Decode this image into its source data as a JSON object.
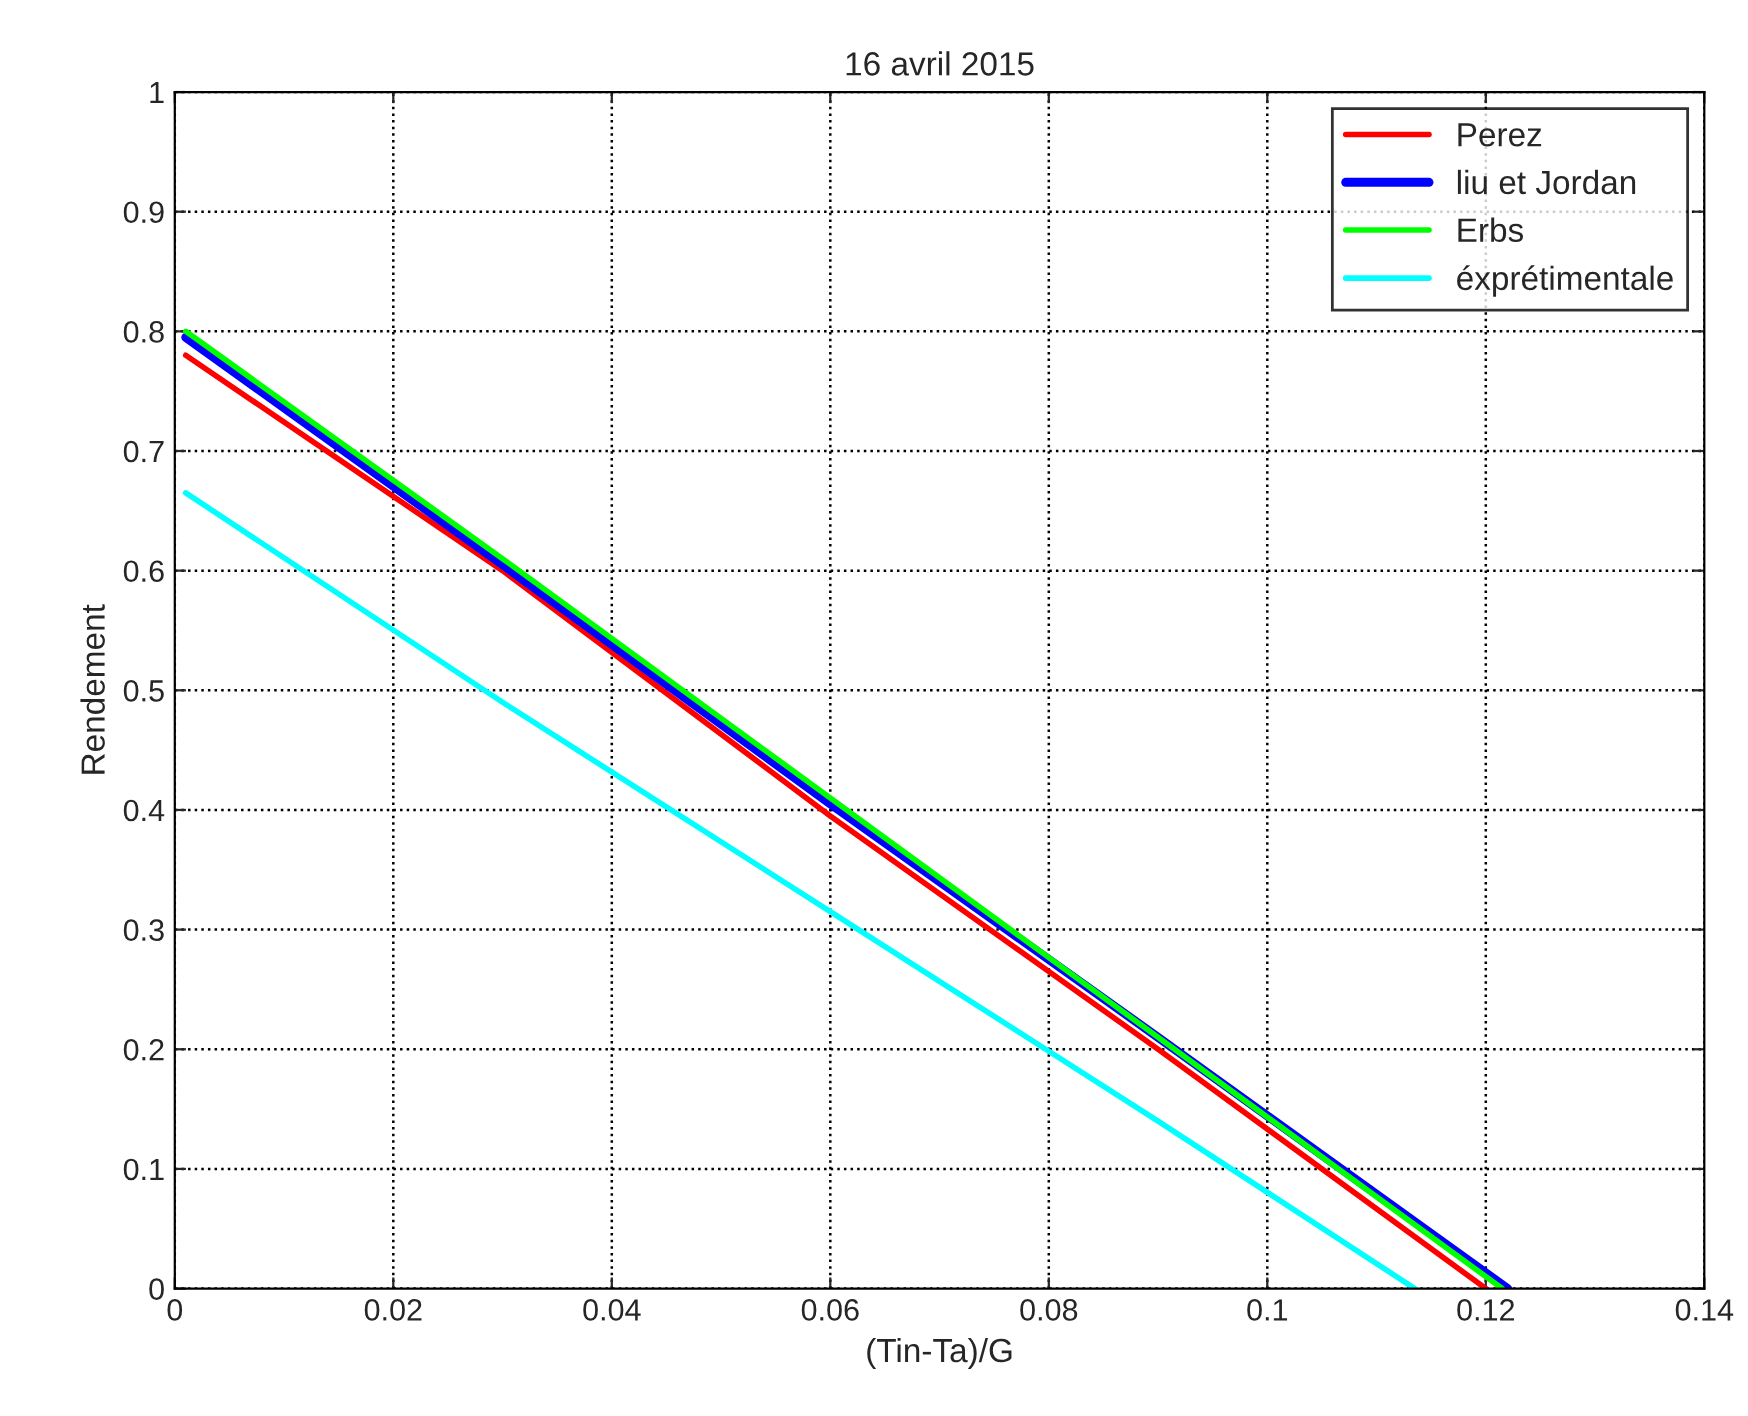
{
  "chart_data": {
    "type": "line",
    "title": "16 avril 2015",
    "xlabel": "(Tin-Ta)/G",
    "ylabel": "Rendement",
    "series": [
      {
        "name": "Perez",
        "color": "#ff0000",
        "x": [
          0.001,
          0.03,
          0.06,
          0.09,
          0.12
        ],
        "values": [
          0.78,
          0.6,
          0.395,
          0.2,
          0.0
        ]
      },
      {
        "name": "liu et Jordan",
        "color": "#0000ff",
        "x": [
          0.001,
          0.03,
          0.06,
          0.09,
          0.122
        ],
        "values": [
          0.795,
          0.605,
          0.405,
          0.21,
          0.0
        ]
      },
      {
        "name": "Erbs",
        "color": "#00ff00",
        "x": [
          0.001,
          0.03,
          0.06,
          0.09,
          0.1215
        ],
        "values": [
          0.8,
          0.61,
          0.41,
          0.21,
          0.0
        ]
      },
      {
        "name": "éxprétimentale",
        "color": "#00ffff",
        "x": [
          0.001,
          0.03,
          0.06,
          0.09,
          0.1135
        ],
        "values": [
          0.665,
          0.49,
          0.315,
          0.14,
          0.0
        ]
      }
    ],
    "xlim": [
      0,
      0.14
    ],
    "xticks": [
      0,
      0.02,
      0.04,
      0.06,
      0.08,
      0.1,
      0.12,
      0.14
    ],
    "ylim": [
      0,
      1
    ],
    "yticks": [
      0,
      0.1,
      0.2,
      0.3,
      0.4,
      0.5,
      0.6,
      0.7,
      0.8,
      0.9,
      1
    ],
    "grid": true,
    "legend": "top right",
    "line_style": "solid",
    "marker": "none"
  }
}
